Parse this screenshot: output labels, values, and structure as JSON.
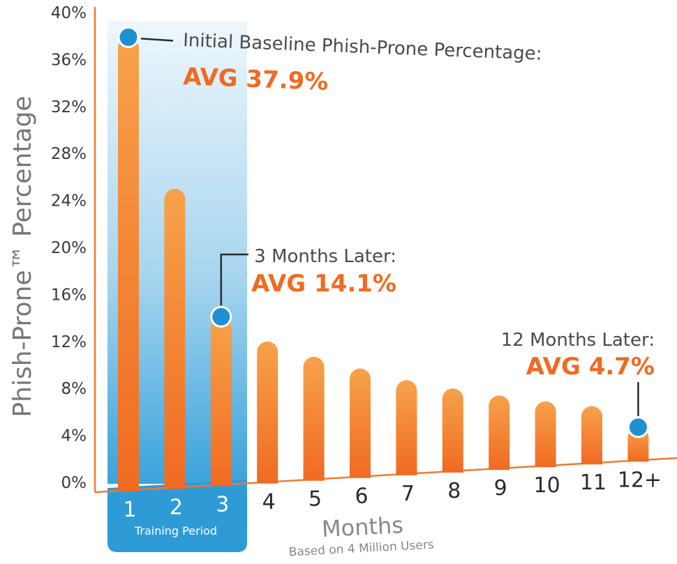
{
  "chart_data": {
    "type": "bar",
    "categories": [
      "1",
      "2",
      "3",
      "4",
      "5",
      "6",
      "7",
      "8",
      "9",
      "10",
      "11",
      "12+"
    ],
    "values": [
      37.9,
      25.0,
      14.1,
      12.0,
      10.7,
      9.7,
      8.7,
      8.0,
      7.4,
      6.9,
      6.5,
      4.7
    ],
    "ylim": [
      0,
      40
    ],
    "yticks": [
      "0%",
      "4%",
      "8%",
      "12%",
      "16%",
      "20%",
      "24%",
      "28%",
      "32%",
      "36%",
      "40%"
    ],
    "ylabel": "Phish-Prone™ Percentage",
    "xlabel": "Months",
    "xsublabel": "Based on 4 Million Users",
    "highlight_label": "Training Period",
    "highlight_categories": [
      "1",
      "2",
      "3"
    ],
    "annotations": [
      {
        "category": "1",
        "line1": "Initial Baseline Phish-Prone Percentage:",
        "line2": "AVG 37.9%"
      },
      {
        "category": "3",
        "line1": "3 Months Later:",
        "line2": "AVG 14.1%"
      },
      {
        "category": "12+",
        "line1": "12 Months Later:",
        "line2": "AVG 4.7%"
      }
    ],
    "colors": {
      "bar_top": "#f7a24a",
      "bar_bottom": "#f06a22",
      "axis": "#f07a30",
      "marker": "#1e90d0",
      "highlight_top": "#e8f4fb",
      "highlight_bottom": "#3aa3dc",
      "highlight_box": "#2f9bd6",
      "accent_text": "#f06a22"
    }
  }
}
